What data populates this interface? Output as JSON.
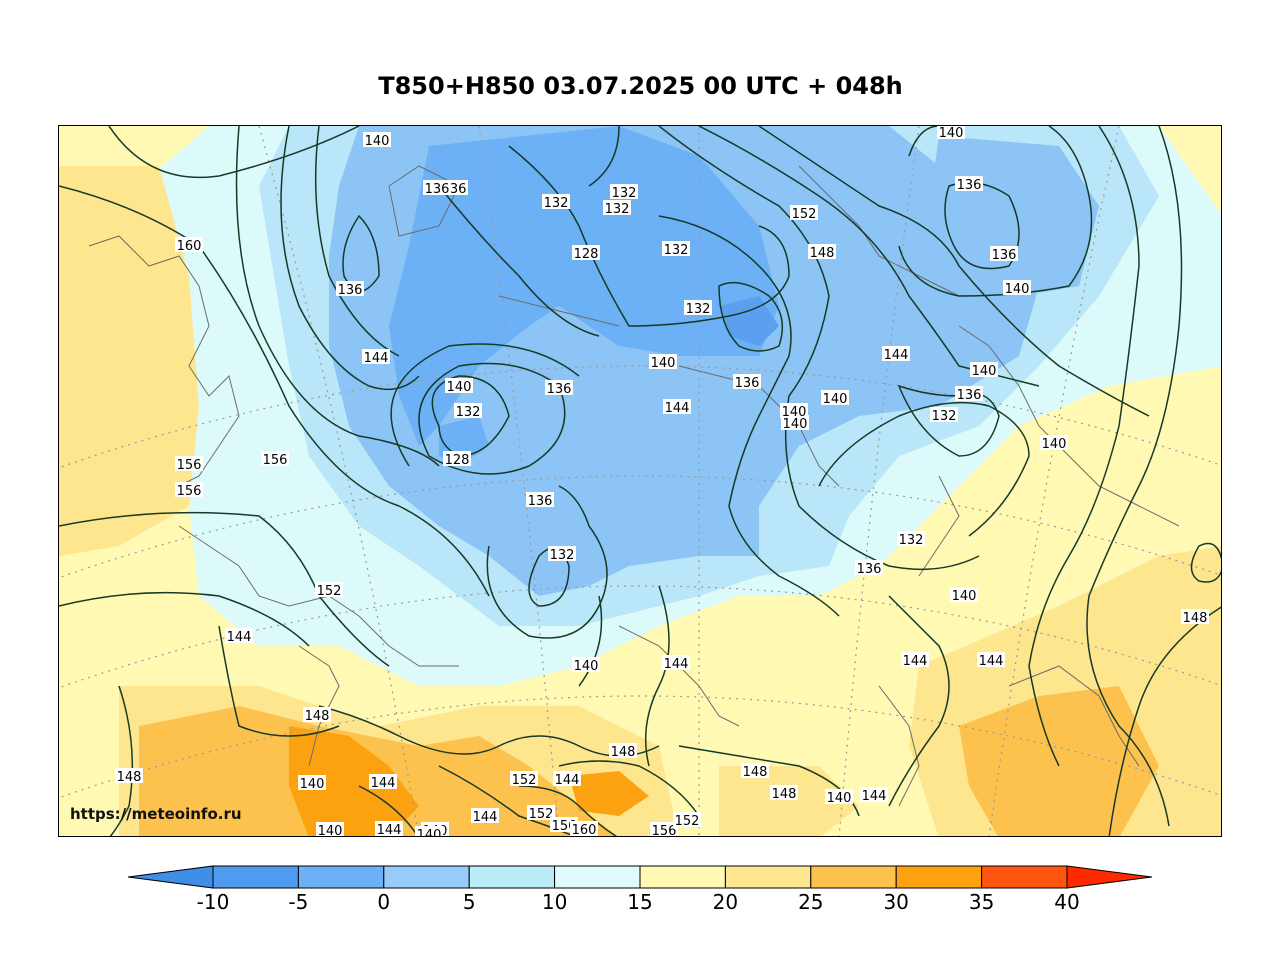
{
  "title": "T850+H850 03.07.2025 00 UTC + 048h",
  "watermark": "https://meteoinfo.ru",
  "colorbar": {
    "ticks": [
      "-10",
      "-5",
      "0",
      "5",
      "10",
      "15",
      "20",
      "25",
      "30",
      "35",
      "40"
    ],
    "colors": [
      "#3f8fe6",
      "#4f9bef",
      "#6cb0f5",
      "#97cbf9",
      "#b9ecf7",
      "#e0fbfb",
      "#fff9b4",
      "#fee68e",
      "#fdc24e",
      "#fca210",
      "#fe5510",
      "#ff2a00"
    ]
  },
  "map": {
    "fill_colors": {
      "cold_deep": "#5aa0ee",
      "cold": "#8cc4f6",
      "cool": "#b9e6f8",
      "mild": "#ddfafa",
      "warm": "#fff9b4",
      "warmer": "#fee68e",
      "hot": "#fdc24e",
      "hottest": "#fca210"
    },
    "contour_labels": [
      "140",
      "136",
      "136",
      "132",
      "132",
      "132",
      "128",
      "152",
      "140",
      "136",
      "136",
      "140",
      "160",
      "136",
      "132",
      "132",
      "132",
      "148",
      "144",
      "140",
      "144",
      "140",
      "136",
      "136",
      "132",
      "128",
      "140",
      "144",
      "136",
      "140",
      "140",
      "132",
      "140",
      "156",
      "156",
      "156",
      "136",
      "132",
      "136",
      "140",
      "144",
      "152",
      "144",
      "148",
      "140",
      "144",
      "144",
      "148",
      "140",
      "148",
      "140",
      "144",
      "152",
      "144",
      "144",
      "148",
      "148",
      "152",
      "156",
      "160",
      "156",
      "152",
      "148",
      "140",
      "144",
      "140",
      "144",
      "140",
      "140"
    ]
  }
}
